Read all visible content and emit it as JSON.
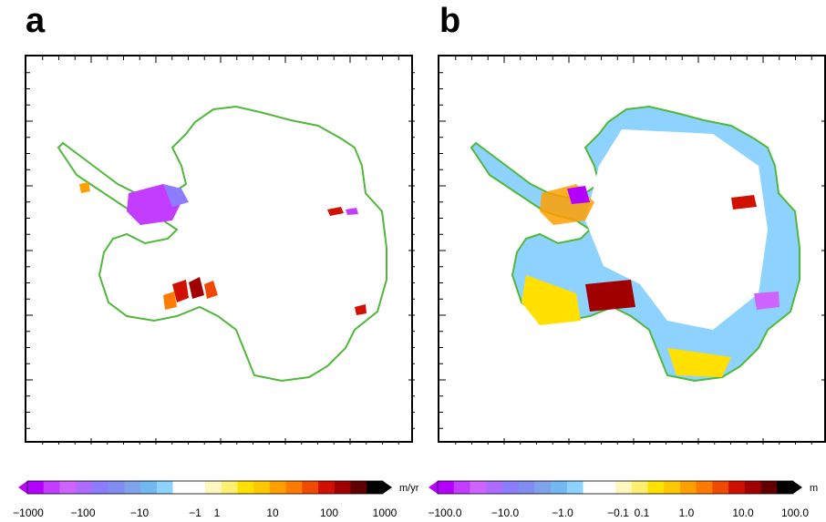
{
  "panels": [
    {
      "letter": "a",
      "colorbar": {
        "unit": "m/yr",
        "ticks": [
          "−1000",
          "−100",
          "−10",
          "−1",
          "1",
          "10",
          "100",
          "1000"
        ],
        "colors": [
          "#b400ff",
          "#c23dff",
          "#cf63ff",
          "#ad6bff",
          "#8c7dff",
          "#7f8df0",
          "#7fa3ea",
          "#71b9f0",
          "#8ed3ff",
          "#ffffff",
          "#ffffff",
          "#fff7c0",
          "#ffef70",
          "#ffe000",
          "#ffc800",
          "#ff9f00",
          "#ff7a00",
          "#f04a00",
          "#d01000",
          "#a00000",
          "#600000",
          "#000000"
        ]
      }
    },
    {
      "letter": "b",
      "colorbar": {
        "unit": "m",
        "ticks": [
          "−100.0",
          "−10.0",
          "−1.0",
          "−0.1",
          "0.1",
          "1.0",
          "10.0",
          "100.0"
        ],
        "colors": [
          "#b400ff",
          "#c23dff",
          "#cf63ff",
          "#ad6bff",
          "#8c7dff",
          "#7f8df0",
          "#7fa3ea",
          "#71b9f0",
          "#8ed3ff",
          "#ffffff",
          "#ffffff",
          "#fff7c0",
          "#ffef70",
          "#ffe000",
          "#ffc800",
          "#ff9f00",
          "#ff7a00",
          "#f04a00",
          "#d01000",
          "#a00000",
          "#600000",
          "#000000"
        ]
      }
    }
  ],
  "colors": {
    "grounding_line": "#4fb83a",
    "frame": "#000000"
  }
}
